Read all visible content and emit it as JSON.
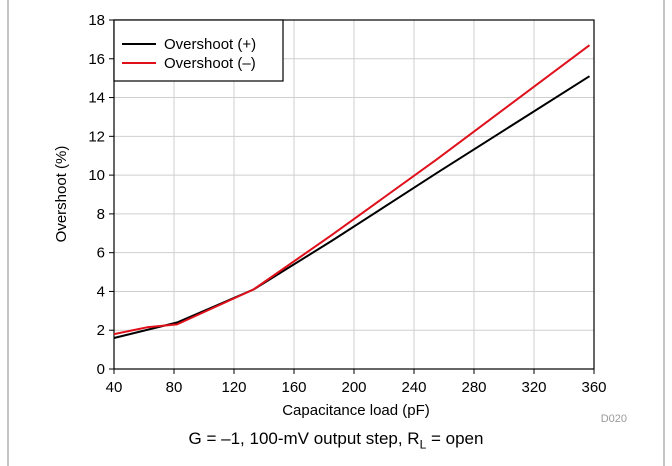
{
  "chart_data": {
    "type": "line",
    "title": "",
    "xlabel": "Capacitance load (pF)",
    "ylabel": "Overshoot (%)",
    "xlim": [
      40,
      360
    ],
    "ylim": [
      0,
      18
    ],
    "xticks": [
      40,
      80,
      120,
      160,
      200,
      240,
      280,
      320,
      360
    ],
    "yticks": [
      0,
      2,
      4,
      6,
      8,
      10,
      12,
      14,
      16,
      18
    ],
    "grid": true,
    "legend_position": "top-left",
    "series": [
      {
        "name": "Overshoot (+)",
        "color": "#000000",
        "x": [
          40,
          82,
          133,
          185,
          255,
          357
        ],
        "y": [
          1.6,
          2.4,
          4.1,
          6.6,
          10.1,
          15.1
        ]
      },
      {
        "name": "Overshoot (–)",
        "color": "#e0101b",
        "x": [
          40,
          62,
          82,
          133,
          185,
          255,
          357
        ],
        "y": [
          1.8,
          2.15,
          2.3,
          4.1,
          6.9,
          10.8,
          16.7
        ]
      }
    ],
    "annotation": "D020"
  },
  "caption": {
    "prefix": "G = –1, 100-mV output step, R",
    "subscript": "L",
    "suffix": " = open"
  }
}
